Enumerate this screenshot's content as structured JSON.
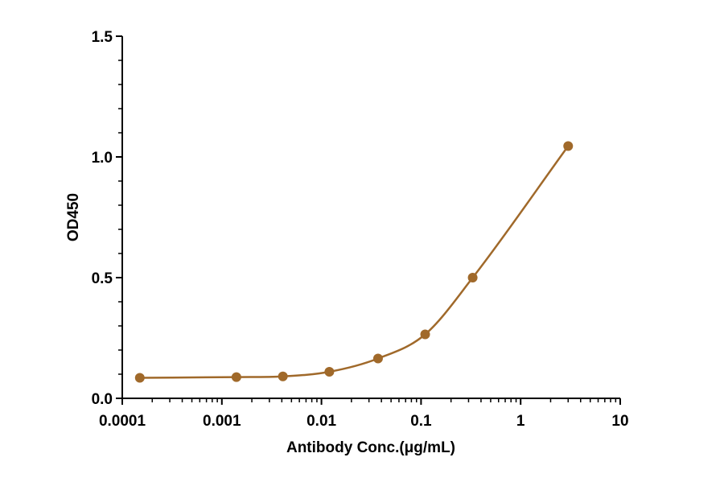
{
  "chart_data": {
    "type": "scatter",
    "title": "",
    "xlabel": "Antibody Conc.(μg/mL)",
    "ylabel": "OD450",
    "xscale": "log",
    "xlim": [
      0.0001,
      10
    ],
    "ylim": [
      0,
      1.5
    ],
    "x_ticks": [
      "0.0001",
      "0.001",
      "0.01",
      "0.1",
      "1",
      "10"
    ],
    "y_ticks": [
      "0.0",
      "0.5",
      "1.0",
      "1.5"
    ],
    "grid": false,
    "legend": "none",
    "color": "#a0692a",
    "series": [
      {
        "x": [
          0.00015,
          0.0014,
          0.0041,
          0.012,
          0.037,
          0.11,
          0.33,
          3.0
        ],
        "y": [
          0.085,
          0.088,
          0.091,
          0.11,
          0.165,
          0.265,
          0.5,
          1.045
        ],
        "fit": "4PL sigmoid curve"
      }
    ]
  }
}
